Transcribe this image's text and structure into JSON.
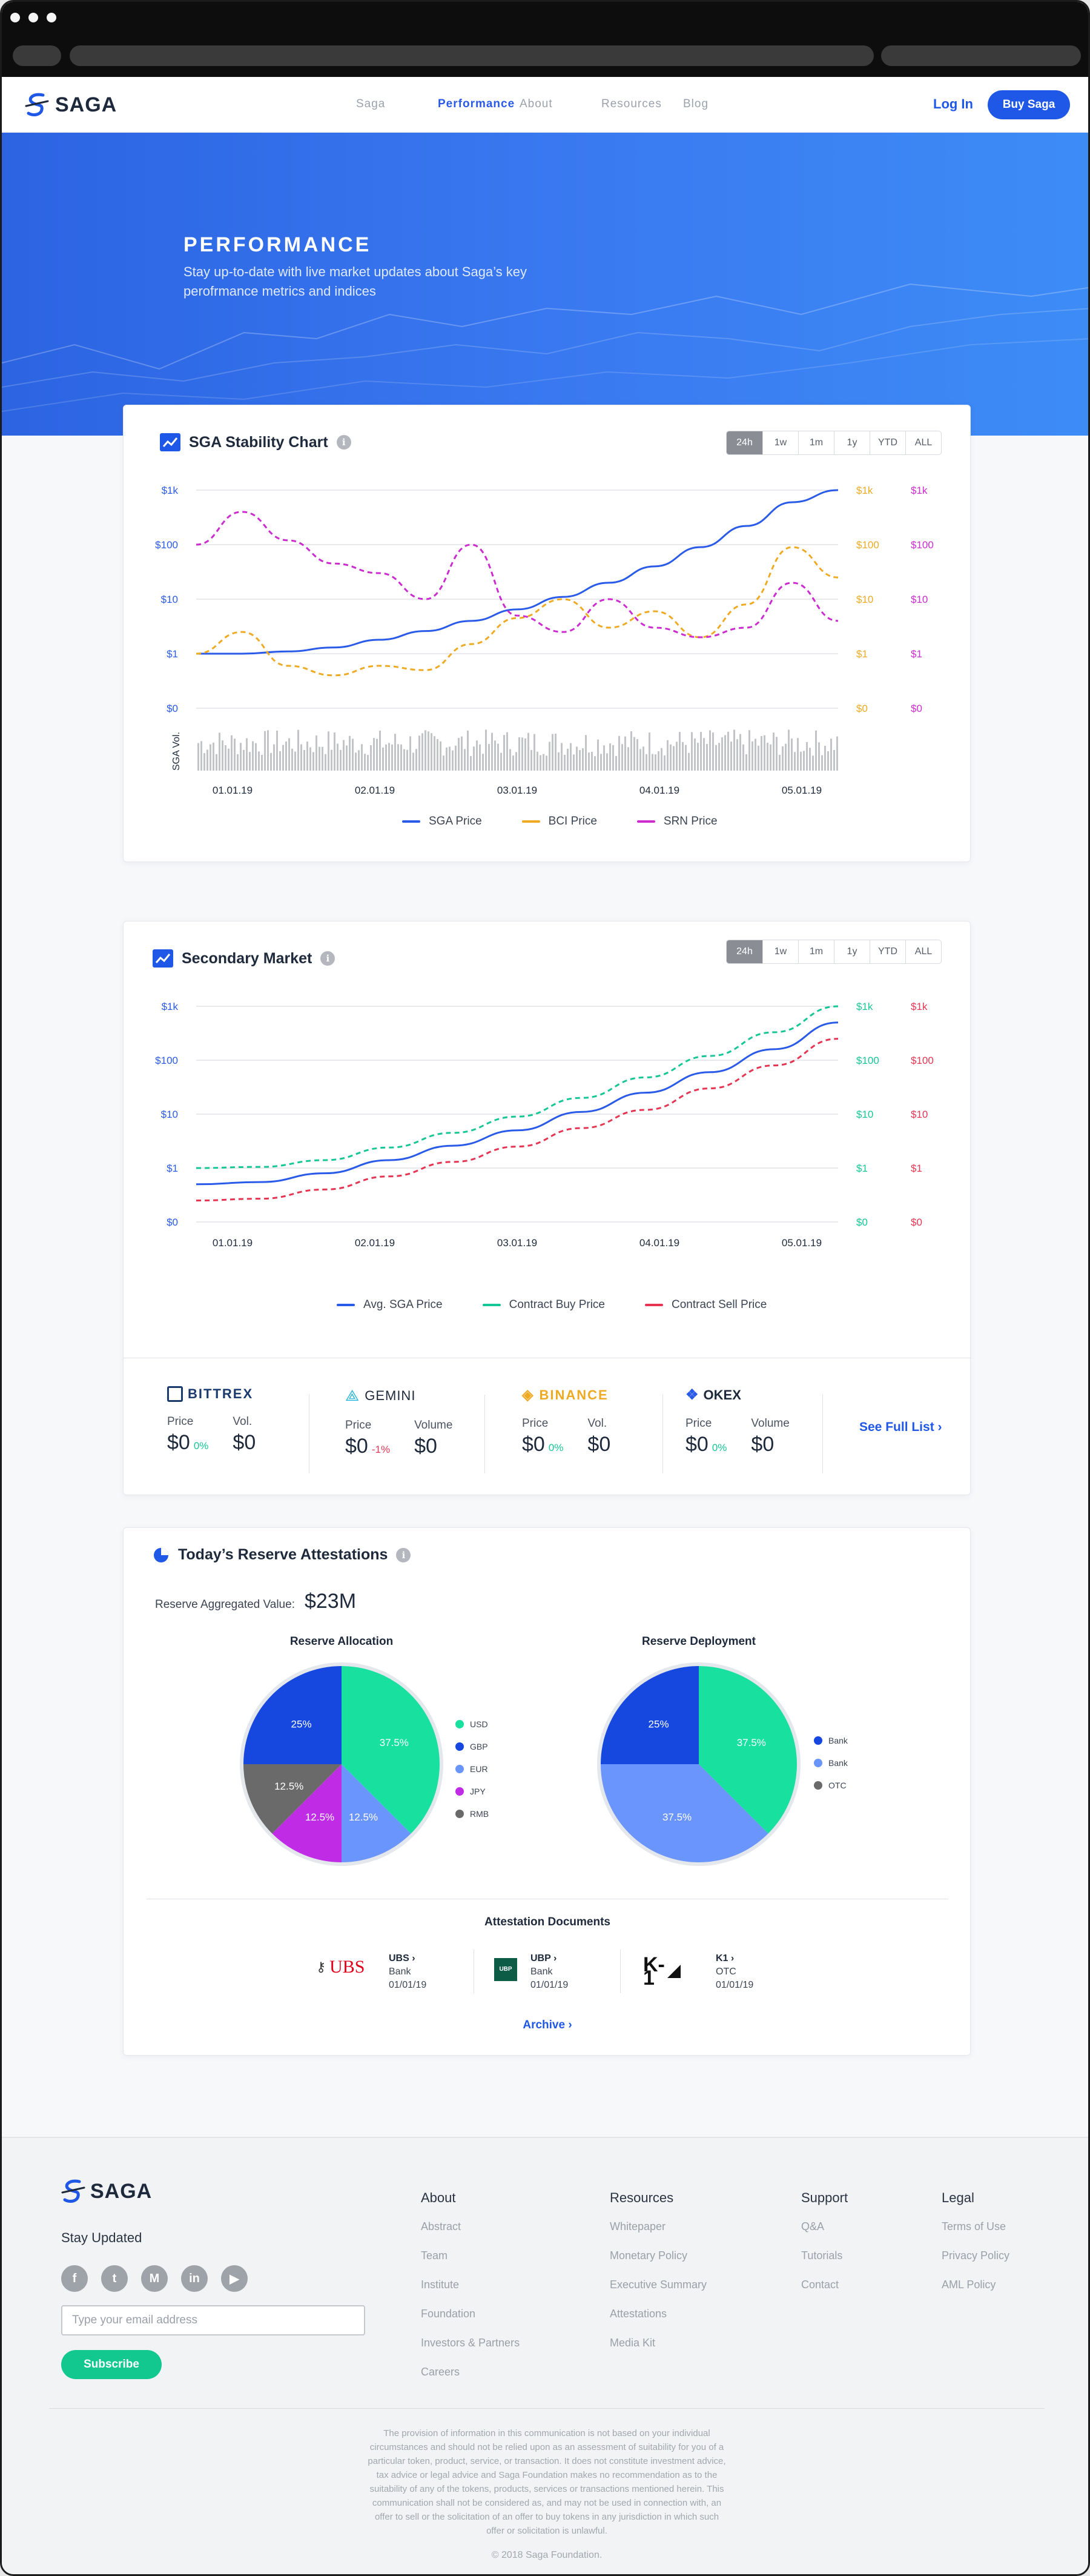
{
  "nav": {
    "logo": "SAGA",
    "links": [
      "Saga",
      "Performance",
      "About",
      "Resources",
      "Blog"
    ],
    "active": "Performance",
    "login": "Log In",
    "buy": "Buy Saga"
  },
  "hero": {
    "title": "PERFORMANCE",
    "subtitle": "Stay up-to-date with live market updates about Saga’s key perofrmance metrics and indices"
  },
  "stability": {
    "title": "SGA Stability Chart",
    "info": "i",
    "ranges": [
      "24h",
      "1w",
      "1m",
      "1y",
      "YTD",
      "ALL"
    ],
    "vol_label": "SGA Vol."
  },
  "secondary": {
    "title": "Secondary Market",
    "info": "i",
    "ranges": [
      "24h",
      "1w",
      "1m",
      "1y",
      "YTD",
      "ALL"
    ],
    "exchanges": [
      {
        "name": "BITTREX",
        "price_label": "Price",
        "vol_label": "Vol.",
        "price": "$0",
        "change": "0%",
        "volume": "$0"
      },
      {
        "name": "GEMINI",
        "price_label": "Price",
        "vol_label": "Volume",
        "price": "$0",
        "change": "-1%",
        "volume": "$0"
      },
      {
        "name": "BINANCE",
        "price_label": "Price",
        "vol_label": "Vol.",
        "price": "$0",
        "change": "0%",
        "volume": "$0"
      },
      {
        "name": "OKEX",
        "price_label": "Price",
        "vol_label": "Volume",
        "price": "$0",
        "change": "0%",
        "volume": "$0"
      }
    ],
    "full_list": "See Full List ›"
  },
  "reserve": {
    "title": "Today’s Reserve Attestations",
    "info": "i",
    "agg_label": "Reserve Aggregated Value:",
    "agg_value": "$23M",
    "allocation_title": "Reserve Allocation",
    "deployment_title": "Reserve Deployment",
    "docs_title": "Attestation Documents",
    "docs": [
      {
        "logo": "UBS",
        "name": "UBS ›",
        "type": "Bank",
        "date": "01/01/19"
      },
      {
        "logo": "UBP",
        "name": "UBP ›",
        "type": "Bank",
        "date": "01/01/19"
      },
      {
        "logo": "K-1",
        "name": "K1 ›",
        "type": "OTC",
        "date": "01/01/19"
      }
    ],
    "archive": "Archive ›"
  },
  "chart_data": [
    {
      "type": "line",
      "title": "SGA Stability Chart",
      "y_scale": "log",
      "y_ticks": [
        "$0",
        "$1",
        "$10",
        "$100",
        "$1k"
      ],
      "x_ticks": [
        "01.01.19",
        "02.01.19",
        "03.01.19",
        "04.01.19",
        "05.01.19"
      ],
      "series": [
        {
          "name": "SGA Price",
          "color": "#2a5ae8",
          "style": "solid",
          "values": [
            1.0,
            1.0,
            1.1,
            1.3,
            1.8,
            2.6,
            4.0,
            6.5,
            11,
            20,
            40,
            90,
            220,
            600,
            1000
          ]
        },
        {
          "name": "BCI Price",
          "color": "#eeaa22",
          "style": "dashed",
          "values": [
            1.0,
            2.5,
            0.6,
            0.4,
            0.6,
            0.5,
            1.5,
            4.5,
            10,
            3,
            6,
            2,
            8,
            90,
            25
          ]
        },
        {
          "name": "SRN Price",
          "color": "#cc2bcf",
          "style": "dashed",
          "values": [
            100,
            400,
            120,
            45,
            30,
            10,
            100,
            5,
            2.5,
            10,
            3,
            2,
            3,
            20,
            4
          ]
        }
      ],
      "legend": "bottom",
      "grid": true
    },
    {
      "type": "line",
      "title": "Secondary Market",
      "y_scale": "log",
      "y_ticks": [
        "$0",
        "$1",
        "$10",
        "$100",
        "$1k"
      ],
      "x_ticks": [
        "01.01.19",
        "02.01.19",
        "03.01.19",
        "04.01.19",
        "05.01.19"
      ],
      "series": [
        {
          "name": "Avg. SGA Price",
          "color": "#2a5ae8",
          "style": "solid",
          "values": [
            0.5,
            0.55,
            0.8,
            1.4,
            2.6,
            5,
            11,
            25,
            60,
            160,
            500
          ]
        },
        {
          "name": "Contract Buy Price",
          "color": "#16c795",
          "style": "dashed",
          "values": [
            1.0,
            1.05,
            1.4,
            2.4,
            4.5,
            9,
            20,
            48,
            120,
            330,
            1000
          ]
        },
        {
          "name": "Contract Sell Price",
          "color": "#e53553",
          "style": "dashed",
          "values": [
            0.25,
            0.27,
            0.4,
            0.7,
            1.3,
            2.5,
            5.5,
            12,
            30,
            80,
            250
          ]
        }
      ],
      "legend": "bottom",
      "grid": true
    },
    {
      "type": "pie",
      "title": "Reserve Allocation",
      "slices": [
        {
          "label": "USD",
          "value": 37.5,
          "color": "#18e1a0"
        },
        {
          "label": "EUR",
          "value": 12.5,
          "color": "#6a95fc"
        },
        {
          "label": "JPY",
          "value": 12.5,
          "color": "#c02be6"
        },
        {
          "label": "RMB",
          "value": 12.5,
          "color": "#6a6a6a"
        },
        {
          "label": "GBP",
          "value": 25,
          "color": "#1648e0"
        }
      ],
      "legend_order": [
        "USD",
        "GBP",
        "EUR",
        "JPY",
        "RMB"
      ]
    },
    {
      "type": "pie",
      "title": "Reserve Deployment",
      "slices": [
        {
          "label": "Bank",
          "value": 37.5,
          "color": "#18e1a0"
        },
        {
          "label": "Bank",
          "value": 37.5,
          "color": "#6a95fc"
        },
        {
          "label": "OTC",
          "value": 25,
          "color": "#1648e0"
        }
      ],
      "legend_order": [
        "Bank",
        "Bank",
        "OTC"
      ]
    }
  ],
  "footer": {
    "logo": "SAGA",
    "stay": "Stay Updated",
    "social": [
      "f",
      "t",
      "M",
      "in",
      "▶"
    ],
    "email_placeholder": "Type your email address",
    "subscribe": "Subscribe",
    "cols": [
      {
        "head": "About",
        "links": [
          "Abstract",
          "Team",
          "Institute",
          "Foundation",
          "Investors & Partners",
          "Careers"
        ]
      },
      {
        "head": "Resources",
        "links": [
          "Whitepaper",
          "Monetary Policy",
          "Executive Summary",
          "Attestations",
          "Media Kit"
        ]
      },
      {
        "head": "Support",
        "links": [
          "Q&A",
          "Tutorials",
          "Contact"
        ]
      },
      {
        "head": "Legal",
        "links": [
          "Terms of Use",
          "Privacy Policy",
          "AML Policy"
        ]
      }
    ],
    "disclaimer": "The provision of information in this communication is not based on your individual circumstances and should not be relied upon as an assessment of suitability for you of a particular token, product, service, or transaction. It does not constitute investment advice, tax advice or legal advice and Saga Foundation makes no recommendation as to the suitability of any of the tokens, products, services or transactions mentioned herein. This communication shall not be considered as, and may not be used in connection with, an offer to sell or the solicitation of an offer to buy tokens in any jurisdiction in which such offer or solicitation is unlawful.",
    "copyright": "© 2018 Saga Foundation."
  }
}
